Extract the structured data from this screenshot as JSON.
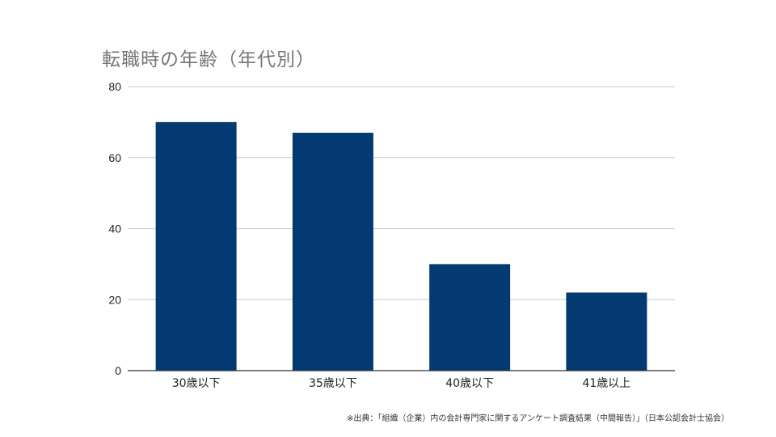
{
  "chart_data": {
    "type": "bar",
    "title": "転職時の年齢（年代別）",
    "categories": [
      "30歳以下",
      "35歳以下",
      "40歳以下",
      "41歳以上"
    ],
    "values": [
      70,
      67,
      30,
      22
    ],
    "ylim": [
      0,
      80
    ],
    "yticks": [
      0,
      20,
      40,
      60,
      80
    ],
    "xlabel": "",
    "ylabel": "",
    "grid": true,
    "bar_color": "#033a71"
  },
  "source_note": "※出典：「組織（企業）内の会計専門家に関するアンケート調査結果（中間報告）」（日本公認会計士協会）"
}
